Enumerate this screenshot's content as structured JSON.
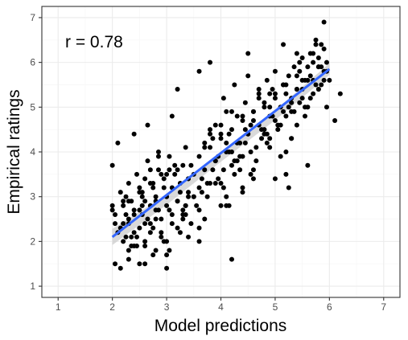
{
  "chart_data": {
    "type": "scatter",
    "title": "",
    "xlabel": "Model predictions",
    "ylabel": "Empirical ratings",
    "annotation": "r = 0.78",
    "xlim": [
      0.7,
      7.3
    ],
    "ylim": [
      0.75,
      7.25
    ],
    "x_ticks": [
      1,
      2,
      3,
      4,
      5,
      6,
      7
    ],
    "y_ticks": [
      1,
      2,
      3,
      4,
      5,
      6,
      7
    ],
    "grid": true,
    "legend": "none",
    "colors": {
      "points": "#000000",
      "fit_line": "#3366FF",
      "band": "#cccccc",
      "panel_border": "#333333",
      "grid_major": "#ebebeb",
      "grid_minor": "#f5f5f5"
    },
    "fit_line": {
      "x": [
        2.0,
        6.0
      ],
      "y": [
        2.1,
        5.85
      ]
    },
    "band": {
      "x": [
        2.0,
        3.0,
        4.0,
        5.0,
        6.0
      ],
      "upper": [
        2.28,
        3.05,
        4.0,
        4.93,
        5.98
      ],
      "lower": [
        1.92,
        2.82,
        3.78,
        4.71,
        5.72
      ]
    },
    "series": [
      {
        "x": [
          2.0,
          2.0,
          2.05,
          2.05,
          2.1,
          2.15,
          2.15,
          2.2,
          2.2,
          2.25,
          2.3,
          2.3,
          2.3,
          2.35,
          2.4,
          2.4,
          2.45,
          2.5,
          2.5,
          2.55,
          2.6,
          2.6,
          2.65,
          2.7,
          2.7,
          2.75,
          2.8,
          2.85,
          2.9,
          3.0,
          3.0,
          3.05,
          3.1,
          3.2,
          3.35,
          3.4,
          3.45,
          3.6,
          3.7,
          3.8,
          3.85,
          3.9,
          4.0,
          4.05,
          4.1,
          4.2,
          4.25,
          4.35,
          4.5,
          4.55,
          4.6,
          4.7,
          4.85,
          4.9,
          5.0,
          5.05,
          5.15,
          5.2,
          5.3,
          5.35,
          5.4,
          5.5,
          5.55,
          5.65,
          5.7,
          5.75,
          5.8,
          5.9,
          5.95,
          6.0,
          6.1,
          6.2,
          2.1,
          2.2,
          2.25,
          2.3,
          2.35,
          2.4,
          2.45,
          2.5,
          2.55,
          2.6,
          2.65,
          2.7,
          2.75,
          2.8,
          2.85,
          2.9,
          2.95,
          3.0,
          3.05,
          3.1,
          3.15,
          3.2,
          3.25,
          3.3,
          3.35,
          3.4,
          3.5,
          3.6,
          3.7,
          3.8,
          3.9,
          4.0,
          4.05,
          4.1,
          4.15,
          4.2,
          4.3,
          4.35,
          4.4,
          4.45,
          4.5,
          4.6,
          4.65,
          4.7,
          4.75,
          4.8,
          4.9,
          5.0,
          5.1,
          5.15,
          5.2,
          5.25,
          5.3,
          5.4,
          5.45,
          5.5,
          5.6,
          5.7,
          5.8,
          5.85,
          5.9,
          5.95,
          2.0,
          2.15,
          2.25,
          2.3,
          2.4,
          2.5,
          2.6,
          2.7,
          2.8,
          2.9,
          3.0,
          3.1,
          3.2,
          3.3,
          3.4,
          3.5,
          3.6,
          3.7,
          3.8,
          3.9,
          4.0,
          4.1,
          4.2,
          4.3,
          4.4,
          4.5,
          4.6,
          4.7,
          4.8,
          4.9,
          5.0,
          5.1,
          5.2,
          5.3,
          5.4,
          5.5,
          5.6,
          5.7,
          5.8,
          5.9,
          2.05,
          2.2,
          2.35,
          2.5,
          2.65,
          2.8,
          2.95,
          3.1,
          3.25,
          3.4,
          3.55,
          3.7,
          3.85,
          4.0,
          4.15,
          4.3,
          4.45,
          4.6,
          4.75,
          4.9,
          5.05,
          5.2,
          5.35,
          5.5,
          5.65,
          5.8,
          5.95,
          2.3,
          2.45,
          2.6,
          2.75,
          2.9,
          3.05,
          3.2,
          3.35,
          3.5,
          3.65,
          3.8,
          3.95,
          4.1,
          4.25,
          4.4,
          4.55,
          4.7,
          4.85,
          5.0,
          5.15,
          5.3,
          5.45,
          5.6,
          5.75,
          5.9,
          2.4,
          2.55,
          2.7,
          2.85,
          3.0,
          3.15,
          3.3,
          3.45,
          3.6,
          3.75,
          3.9,
          4.05,
          4.2,
          4.35,
          4.5,
          4.65,
          4.8,
          4.95,
          5.1,
          5.25,
          5.4,
          5.55,
          5.7,
          5.85,
          2.6,
          2.8,
          3.0,
          3.2,
          3.4,
          3.6,
          3.8,
          4.0,
          4.2,
          4.4,
          4.6,
          4.8,
          5.0,
          5.2,
          5.4,
          5.6,
          5.8,
          2.75,
          3.05,
          3.35,
          3.65,
          3.95,
          4.25,
          4.55,
          4.85,
          5.15,
          5.45,
          5.75,
          2.55,
          2.95,
          3.3,
          3.75,
          4.15,
          4.45,
          4.95,
          5.25,
          5.55,
          5.85,
          2.85,
          3.25,
          3.6,
          4.1,
          4.4,
          4.9,
          5.3,
          5.65
        ],
        "y": [
          3.7,
          2.7,
          1.5,
          2.4,
          4.2,
          1.4,
          3.1,
          2.8,
          2.0,
          3.0,
          1.8,
          2.5,
          1.6,
          2.9,
          4.4,
          2.7,
          1.9,
          3.2,
          1.5,
          2.6,
          3.4,
          1.9,
          4.6,
          2.4,
          3.6,
          1.7,
          3.0,
          4.0,
          2.2,
          3.5,
          1.4,
          2.7,
          4.8,
          5.4,
          2.6,
          3.1,
          3.7,
          5.8,
          2.5,
          6.0,
          4.3,
          3.3,
          4.4,
          5.2,
          3.0,
          1.6,
          5.5,
          3.9,
          6.2,
          4.6,
          3.4,
          5.3,
          5.6,
          4.1,
          5.8,
          4.5,
          6.4,
          3.5,
          5.1,
          5.9,
          4.6,
          6.1,
          5.0,
          5.7,
          5.3,
          6.5,
          5.4,
          6.9,
          5.0,
          5.6,
          4.7,
          5.3,
          2.2,
          2.9,
          2.1,
          3.3,
          1.9,
          2.6,
          3.5,
          2.3,
          3.0,
          2.0,
          3.8,
          2.8,
          3.2,
          2.5,
          3.6,
          2.1,
          3.4,
          2.8,
          3.9,
          2.4,
          3.7,
          2.9,
          3.3,
          2.6,
          4.1,
          3.0,
          3.5,
          2.7,
          4.2,
          3.3,
          3.8,
          4.6,
          3.6,
          4.9,
          4.0,
          3.7,
          4.8,
          4.2,
          3.9,
          5.1,
          4.4,
          4.9,
          3.8,
          5.4,
          4.5,
          5.0,
          4.3,
          5.2,
          4.6,
          5.5,
          4.8,
          5.7,
          4.9,
          5.4,
          6.0,
          5.2,
          5.6,
          6.2,
          5.4,
          5.9,
          6.3,
          5.8,
          2.8,
          2.3,
          2.6,
          2.9,
          2.2,
          3.1,
          2.4,
          3.3,
          2.7,
          3.5,
          3.0,
          3.2,
          2.9,
          3.7,
          3.4,
          3.0,
          3.9,
          3.6,
          4.1,
          3.8,
          4.3,
          4.0,
          4.5,
          4.2,
          4.7,
          4.4,
          4.9,
          4.6,
          5.1,
          4.8,
          5.3,
          5.0,
          5.5,
          5.2,
          5.7,
          5.4,
          5.9,
          5.6,
          6.1,
          5.8,
          2.6,
          2.4,
          2.1,
          2.7,
          2.5,
          2.9,
          3.2,
          2.6,
          3.1,
          3.4,
          2.8,
          4.1,
          3.6,
          3.3,
          4.4,
          3.8,
          4.2,
          4.7,
          4.3,
          5.0,
          4.6,
          5.3,
          4.9,
          5.6,
          5.2,
          5.9,
          6.0,
          2.4,
          2.1,
          2.9,
          3.3,
          2.5,
          3.6,
          2.3,
          2.8,
          3.0,
          3.4,
          4.5,
          3.9,
          4.2,
          3.5,
          4.8,
          4.0,
          5.2,
          4.4,
          4.7,
          5.5,
          4.3,
          5.8,
          5.0,
          6.4,
          5.6,
          1.9,
          3.1,
          2.2,
          3.9,
          2.0,
          3.5,
          2.7,
          2.4,
          3.2,
          3.0,
          4.6,
          3.2,
          4.9,
          3.6,
          5.7,
          4.1,
          4.5,
          5.4,
          3.9,
          5.0,
          6.2,
          4.8,
          6.0,
          5.5,
          1.5,
          1.8,
          1.7,
          3.6,
          2.1,
          2.3,
          4.4,
          2.8,
          4.0,
          3.1,
          3.6,
          4.4,
          3.4,
          4.0,
          5.4,
          3.7,
          5.9,
          2.3,
          1.8,
          2.8,
          3.1,
          3.4,
          3.8,
          3.5,
          4.2,
          4.9,
          5.1,
          5.5,
          2.8,
          2.0,
          2.5,
          3.3,
          2.8,
          4.5,
          4.8,
          3.2,
          5.6,
          6.4,
          2.7,
          2.2,
          2.0,
          2.8,
          3.2,
          5.3,
          4.3,
          6.2
        ]
      }
    ]
  }
}
